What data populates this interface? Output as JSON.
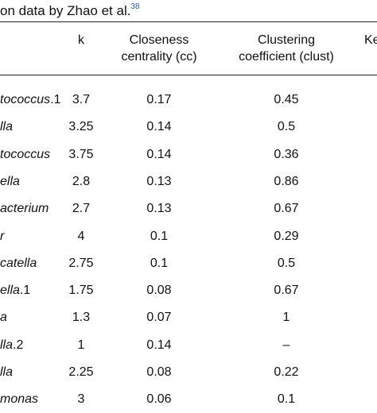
{
  "caption": {
    "text": "on data by Zhao et al.",
    "reference": "38"
  },
  "headers": {
    "k": "k",
    "cc_line1": "Closeness",
    "cc_line2": "centrality (cc)",
    "clust_line1": "Clustering",
    "clust_line2": "coefficient (clust)",
    "cut": "Ke"
  },
  "rows": [
    {
      "taxon": "tococcus",
      "suffix": ".1",
      "k": "3.7",
      "cc": "0.17",
      "clust": "0.45"
    },
    {
      "taxon": "lla",
      "suffix": "",
      "k": "3.25",
      "cc": "0.14",
      "clust": "0.5"
    },
    {
      "taxon": "tococcus",
      "suffix": "",
      "k": "3.75",
      "cc": "0.14",
      "clust": "0.36"
    },
    {
      "taxon": "ella",
      "suffix": "",
      "k": "2.8",
      "cc": "0.13",
      "clust": "0.86"
    },
    {
      "taxon": "acterium",
      "suffix": "",
      "k": "2.7",
      "cc": "0.13",
      "clust": "0.67"
    },
    {
      "taxon": "r",
      "suffix": "",
      "k": "4",
      "cc": "0.1",
      "clust": "0.29"
    },
    {
      "taxon": "catella",
      "suffix": "",
      "k": "2.75",
      "cc": "0.1",
      "clust": "0.5"
    },
    {
      "taxon": "ella",
      "suffix": ".1",
      "k": "1.75",
      "cc": "0.08",
      "clust": "0.67"
    },
    {
      "taxon": "a",
      "suffix": "",
      "k": "1.3",
      "cc": "0.07",
      "clust": "1"
    },
    {
      "taxon": "lla",
      "suffix": ".2",
      "k": "1",
      "cc": "0.14",
      "clust": "–"
    },
    {
      "taxon": "lla",
      "suffix": "",
      "k": "2.25",
      "cc": "0.08",
      "clust": "0.22"
    },
    {
      "taxon": "monas",
      "suffix": "",
      "k": "3",
      "cc": "0.06",
      "clust": "0.1"
    }
  ]
}
